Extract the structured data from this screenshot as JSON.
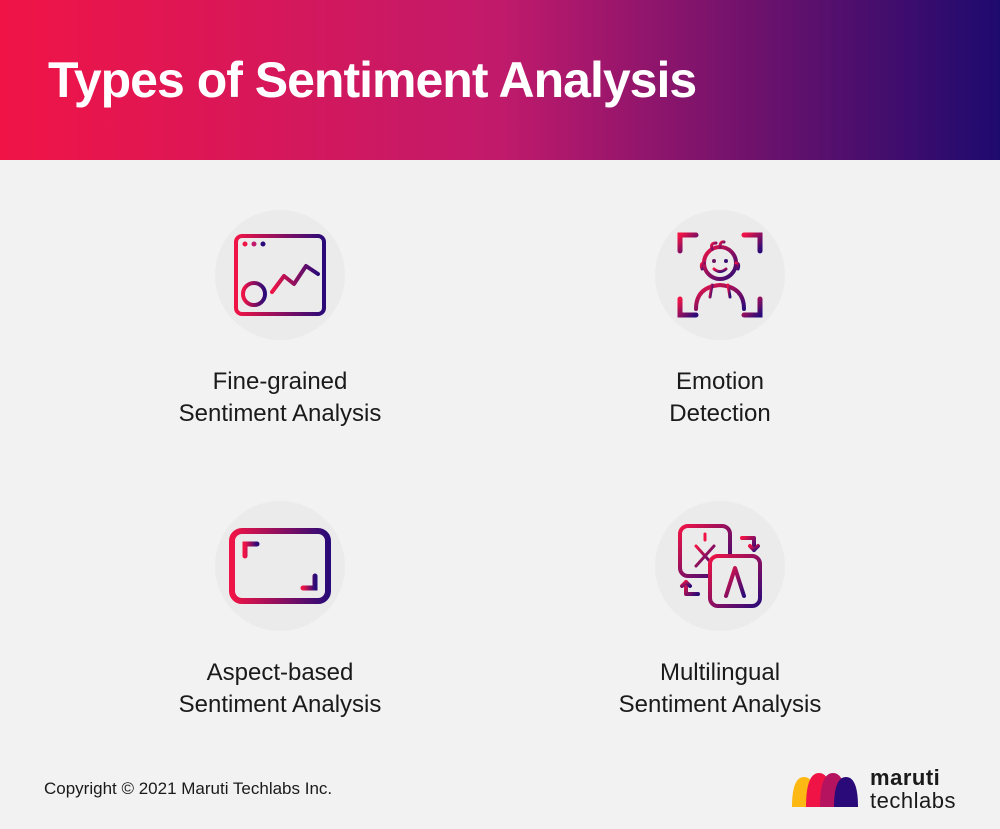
{
  "header": {
    "title": "Types of Sentiment Analysis",
    "title_fontsize": 50,
    "title_weight": 800,
    "gradient_start": "#f01446",
    "gradient_mid": "#c11a6b",
    "gradient_end": "#1e0a6e",
    "text_color": "#ffffff"
  },
  "background_color": "#f2f2f2",
  "icon_bg": "#ebebeb",
  "icon_bg_diameter": 130,
  "gradient_colors": {
    "red": "#f01446",
    "purple": "#2a0a78"
  },
  "cards": [
    {
      "icon": "dashboard-chart",
      "label": "Fine-grained\nSentiment Analysis"
    },
    {
      "icon": "face-detection",
      "label": "Emotion\nDetection"
    },
    {
      "icon": "aspect-frame",
      "label": "Aspect-based\nSentiment Analysis"
    },
    {
      "icon": "translate",
      "label": "Multilingual\nSentiment Analysis"
    }
  ],
  "label_fontsize": 24,
  "label_color": "#1a1a1a",
  "footer": {
    "copyright": "Copyright © 2021 Maruti Techlabs Inc.",
    "copyright_fontsize": 17,
    "logo_top": "maruti",
    "logo_bottom": "techlabs",
    "logo_fontsize": 22,
    "logo_colors": [
      "#fdb813",
      "#f01446",
      "#b5135f",
      "#2a0a78"
    ]
  }
}
